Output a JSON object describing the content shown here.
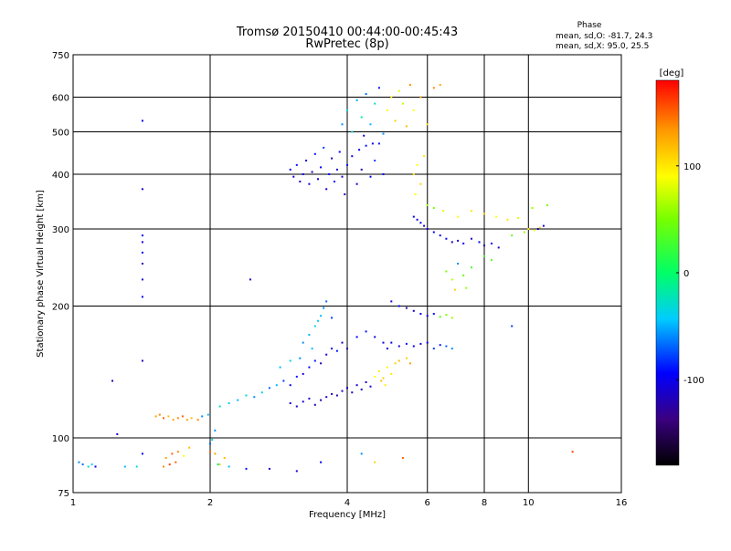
{
  "chart_data": {
    "type": "scatter",
    "title": "Tromsø 20150410 00:44:00-00:45:43",
    "subtitle": "RwPretec (8p)",
    "xlabel": "Frequency [MHz]",
    "ylabel": "Stationary phase Virtual Height [km]",
    "x_scale": "log",
    "y_scale": "log",
    "xlim": [
      1,
      16
    ],
    "ylim": [
      75,
      750
    ],
    "xticks": [
      1,
      2,
      4,
      6,
      8,
      10,
      16
    ],
    "xtick_labels": [
      "1",
      "2",
      "4",
      "6",
      "8",
      "10",
      "16"
    ],
    "yticks": [
      75,
      100,
      200,
      300,
      400,
      500,
      600,
      750
    ],
    "ytick_labels": [
      "75",
      "100",
      "200",
      "300",
      "400",
      "500",
      "600",
      "750"
    ],
    "grid": true,
    "phase_stats": {
      "heading": "Phase",
      "line1": "mean, sd,O: -81.7, 24.3",
      "line2": "mean, sd,X:  95.0, 25.5"
    },
    "colorbar": {
      "label": "[deg]",
      "range": [
        -180,
        180
      ],
      "ticks": [
        100,
        0,
        -100
      ],
      "tick_labels": [
        "100",
        "0",
        "-100"
      ]
    },
    "points": [
      [
        1.42,
        530,
        -100
      ],
      [
        1.42,
        370,
        -110
      ],
      [
        1.42,
        290,
        -100
      ],
      [
        1.42,
        280,
        -110
      ],
      [
        1.42,
        265,
        -100
      ],
      [
        1.42,
        250,
        -120
      ],
      [
        1.42,
        230,
        -110
      ],
      [
        1.42,
        210,
        -100
      ],
      [
        1.42,
        150,
        -120
      ],
      [
        1.42,
        92,
        -100
      ],
      [
        1.22,
        135,
        -120
      ],
      [
        1.25,
        102,
        -110
      ],
      [
        2.45,
        230,
        -110
      ],
      [
        1.03,
        88,
        -60
      ],
      [
        1.05,
        87,
        -70
      ],
      [
        1.08,
        86,
        -30
      ],
      [
        1.1,
        87,
        -40
      ],
      [
        1.12,
        86,
        -100
      ],
      [
        1.3,
        86,
        -50
      ],
      [
        1.38,
        86,
        -40
      ],
      [
        1.52,
        112,
        130
      ],
      [
        1.55,
        113,
        140
      ],
      [
        1.58,
        111,
        150
      ],
      [
        1.62,
        112,
        120
      ],
      [
        1.66,
        110,
        130
      ],
      [
        1.7,
        111,
        140
      ],
      [
        1.74,
        112,
        150
      ],
      [
        1.78,
        110,
        130
      ],
      [
        1.82,
        111,
        120
      ],
      [
        1.88,
        110,
        140
      ],
      [
        1.92,
        112,
        -60
      ],
      [
        1.98,
        113,
        -50
      ],
      [
        1.6,
        90,
        130
      ],
      [
        1.65,
        92,
        150
      ],
      [
        1.7,
        93,
        140
      ],
      [
        1.75,
        91,
        90
      ],
      [
        1.8,
        95,
        120
      ],
      [
        1.58,
        86,
        140
      ],
      [
        1.63,
        87,
        160
      ],
      [
        1.68,
        88,
        150
      ],
      [
        2.0,
        93,
        150
      ],
      [
        2.05,
        92,
        130
      ],
      [
        2.1,
        87,
        110
      ],
      [
        2.15,
        90,
        120
      ],
      [
        2.0,
        97,
        -70
      ],
      [
        2.05,
        104,
        -60
      ],
      [
        2.02,
        99,
        -40
      ],
      [
        2.08,
        87,
        -20
      ],
      [
        2.2,
        86,
        -50
      ],
      [
        2.4,
        85,
        -90
      ],
      [
        2.7,
        85,
        -120
      ],
      [
        3.1,
        84,
        -110
      ],
      [
        3.5,
        88,
        -100
      ],
      [
        4.3,
        92,
        -60
      ],
      [
        4.6,
        88,
        110
      ],
      [
        5.3,
        90,
        150
      ],
      [
        12.5,
        93,
        160
      ],
      [
        2.1,
        118,
        -30
      ],
      [
        2.2,
        120,
        -40
      ],
      [
        2.3,
        122,
        -50
      ],
      [
        2.4,
        125,
        -30
      ],
      [
        2.5,
        124,
        -60
      ],
      [
        2.6,
        127,
        -40
      ],
      [
        2.7,
        130,
        -70
      ],
      [
        2.8,
        132,
        -50
      ],
      [
        2.9,
        135,
        -80
      ],
      [
        3.0,
        132,
        -100
      ],
      [
        3.1,
        138,
        -90
      ],
      [
        3.2,
        140,
        -110
      ],
      [
        3.3,
        145,
        -100
      ],
      [
        3.4,
        150,
        -90
      ],
      [
        3.5,
        148,
        -120
      ],
      [
        3.6,
        155,
        -110
      ],
      [
        3.7,
        160,
        -100
      ],
      [
        3.8,
        158,
        -90
      ],
      [
        3.9,
        165,
        -110
      ],
      [
        4.0,
        160,
        -120
      ],
      [
        4.2,
        170,
        -100
      ],
      [
        4.4,
        175,
        -90
      ],
      [
        4.6,
        170,
        -110
      ],
      [
        4.8,
        165,
        -100
      ],
      [
        3.2,
        165,
        -60
      ],
      [
        3.3,
        172,
        -50
      ],
      [
        3.4,
        180,
        -40
      ],
      [
        3.5,
        190,
        -50
      ],
      [
        3.55,
        198,
        -60
      ],
      [
        3.6,
        205,
        -70
      ],
      [
        3.45,
        185,
        -40
      ],
      [
        3.35,
        160,
        -50
      ],
      [
        3.15,
        152,
        -60
      ],
      [
        3.7,
        188,
        -80
      ],
      [
        3.0,
        150,
        -40
      ],
      [
        2.85,
        145,
        -50
      ],
      [
        3.0,
        120,
        -110
      ],
      [
        3.1,
        118,
        -120
      ],
      [
        3.2,
        121,
        -115
      ],
      [
        3.3,
        123,
        -110
      ],
      [
        3.4,
        119,
        -125
      ],
      [
        3.5,
        122,
        -120
      ],
      [
        3.6,
        124,
        -110
      ],
      [
        3.7,
        126,
        -115
      ],
      [
        3.8,
        125,
        -120
      ],
      [
        3.9,
        128,
        -110
      ],
      [
        4.0,
        130,
        -115
      ],
      [
        4.1,
        127,
        -120
      ],
      [
        4.2,
        132,
        -110
      ],
      [
        4.3,
        129,
        -115
      ],
      [
        4.4,
        134,
        -120
      ],
      [
        4.5,
        131,
        -110
      ],
      [
        4.6,
        138,
        90
      ],
      [
        4.7,
        142,
        100
      ],
      [
        4.8,
        137,
        110
      ],
      [
        4.9,
        145,
        95
      ],
      [
        5.0,
        140,
        100
      ],
      [
        5.1,
        148,
        110
      ],
      [
        4.75,
        135,
        120
      ],
      [
        4.85,
        132,
        95
      ],
      [
        5.2,
        150,
        120
      ],
      [
        5.4,
        152,
        110
      ],
      [
        5.5,
        148,
        130
      ],
      [
        4.9,
        160,
        -110
      ],
      [
        5.0,
        165,
        -100
      ],
      [
        5.2,
        162,
        -110
      ],
      [
        5.4,
        164,
        -90
      ],
      [
        5.6,
        162,
        -100
      ],
      [
        5.8,
        164,
        -110
      ],
      [
        6.0,
        165,
        -100
      ],
      [
        6.2,
        160,
        -80
      ],
      [
        6.4,
        163,
        -90
      ],
      [
        6.6,
        162,
        -70
      ],
      [
        6.8,
        160,
        -60
      ],
      [
        5.0,
        205,
        -110
      ],
      [
        5.2,
        200,
        -100
      ],
      [
        5.4,
        198,
        -120
      ],
      [
        5.6,
        195,
        -110
      ],
      [
        5.8,
        192,
        -100
      ],
      [
        6.0,
        190,
        -110
      ],
      [
        6.2,
        192,
        -90
      ],
      [
        6.4,
        189,
        40
      ],
      [
        6.6,
        191,
        50
      ],
      [
        6.8,
        188,
        60
      ],
      [
        3.0,
        410,
        -100
      ],
      [
        3.05,
        395,
        -110
      ],
      [
        3.1,
        420,
        -90
      ],
      [
        3.15,
        385,
        -120
      ],
      [
        3.2,
        400,
        -100
      ],
      [
        3.25,
        430,
        -110
      ],
      [
        3.3,
        380,
        -100
      ],
      [
        3.35,
        405,
        -120
      ],
      [
        3.4,
        445,
        -90
      ],
      [
        3.45,
        390,
        -110
      ],
      [
        3.5,
        415,
        -100
      ],
      [
        3.55,
        460,
        -80
      ],
      [
        3.6,
        370,
        -110
      ],
      [
        3.65,
        400,
        -100
      ],
      [
        3.7,
        435,
        -120
      ],
      [
        3.75,
        385,
        -90
      ],
      [
        3.8,
        410,
        -110
      ],
      [
        3.85,
        450,
        -100
      ],
      [
        3.9,
        395,
        -110
      ],
      [
        3.95,
        360,
        -120
      ],
      [
        4.0,
        420,
        -90
      ],
      [
        4.1,
        440,
        -100
      ],
      [
        4.2,
        380,
        -110
      ],
      [
        4.3,
        410,
        -120
      ],
      [
        4.4,
        465,
        -90
      ],
      [
        4.5,
        395,
        -100
      ],
      [
        4.6,
        430,
        -80
      ],
      [
        4.7,
        470,
        -90
      ],
      [
        4.8,
        400,
        -100
      ],
      [
        3.9,
        520,
        -60
      ],
      [
        4.0,
        560,
        -40
      ],
      [
        4.1,
        500,
        -30
      ],
      [
        4.2,
        590,
        -50
      ],
      [
        4.3,
        540,
        -20
      ],
      [
        4.4,
        610,
        -70
      ],
      [
        4.5,
        520,
        -50
      ],
      [
        4.6,
        580,
        -30
      ],
      [
        4.7,
        630,
        -90
      ],
      [
        4.8,
        495,
        -60
      ],
      [
        4.9,
        560,
        90
      ],
      [
        5.0,
        600,
        100
      ],
      [
        5.1,
        530,
        110
      ],
      [
        5.2,
        620,
        80
      ],
      [
        5.3,
        580,
        70
      ],
      [
        5.4,
        515,
        120
      ],
      [
        5.5,
        640,
        140
      ],
      [
        5.6,
        560,
        90
      ],
      [
        5.8,
        600,
        130
      ],
      [
        6.0,
        520,
        110
      ],
      [
        6.2,
        630,
        140
      ],
      [
        6.4,
        640,
        130
      ],
      [
        4.35,
        490,
        -100
      ],
      [
        4.55,
        470,
        -110
      ],
      [
        4.25,
        455,
        -100
      ],
      [
        5.6,
        400,
        100
      ],
      [
        5.7,
        420,
        90
      ],
      [
        5.8,
        380,
        110
      ],
      [
        5.9,
        440,
        100
      ],
      [
        5.65,
        360,
        90
      ],
      [
        5.6,
        320,
        -100
      ],
      [
        5.7,
        315,
        -110
      ],
      [
        5.8,
        310,
        -100
      ],
      [
        5.9,
        305,
        -120
      ],
      [
        6.0,
        300,
        -110
      ],
      [
        6.2,
        295,
        -100
      ],
      [
        6.4,
        290,
        -110
      ],
      [
        6.6,
        285,
        -100
      ],
      [
        6.8,
        280,
        -120
      ],
      [
        7.0,
        282,
        -110
      ],
      [
        7.2,
        278,
        -100
      ],
      [
        7.5,
        285,
        -110
      ],
      [
        7.8,
        280,
        -100
      ],
      [
        8.0,
        275,
        -110
      ],
      [
        8.3,
        278,
        -100
      ],
      [
        8.6,
        272,
        -120
      ],
      [
        6.0,
        340,
        60
      ],
      [
        6.2,
        335,
        50
      ],
      [
        6.5,
        330,
        80
      ],
      [
        7.0,
        320,
        90
      ],
      [
        7.5,
        330,
        100
      ],
      [
        8.0,
        325,
        110
      ],
      [
        8.5,
        320,
        90
      ],
      [
        9.0,
        315,
        100
      ],
      [
        9.5,
        318,
        80
      ],
      [
        10.0,
        300,
        100
      ],
      [
        10.3,
        298,
        90
      ],
      [
        10.6,
        302,
        110
      ],
      [
        9.8,
        295,
        60
      ],
      [
        9.2,
        290,
        40
      ],
      [
        6.6,
        240,
        50
      ],
      [
        6.8,
        230,
        70
      ],
      [
        7.0,
        250,
        -60
      ],
      [
        7.2,
        235,
        40
      ],
      [
        7.5,
        245,
        30
      ],
      [
        8.0,
        260,
        30
      ],
      [
        8.3,
        255,
        40
      ],
      [
        6.9,
        218,
        110
      ],
      [
        7.3,
        220,
        60
      ],
      [
        9.2,
        180,
        -80
      ],
      [
        10.5,
        300,
        -110
      ],
      [
        10.8,
        305,
        -100
      ],
      [
        10.2,
        335,
        60
      ],
      [
        11.0,
        340,
        50
      ]
    ]
  }
}
